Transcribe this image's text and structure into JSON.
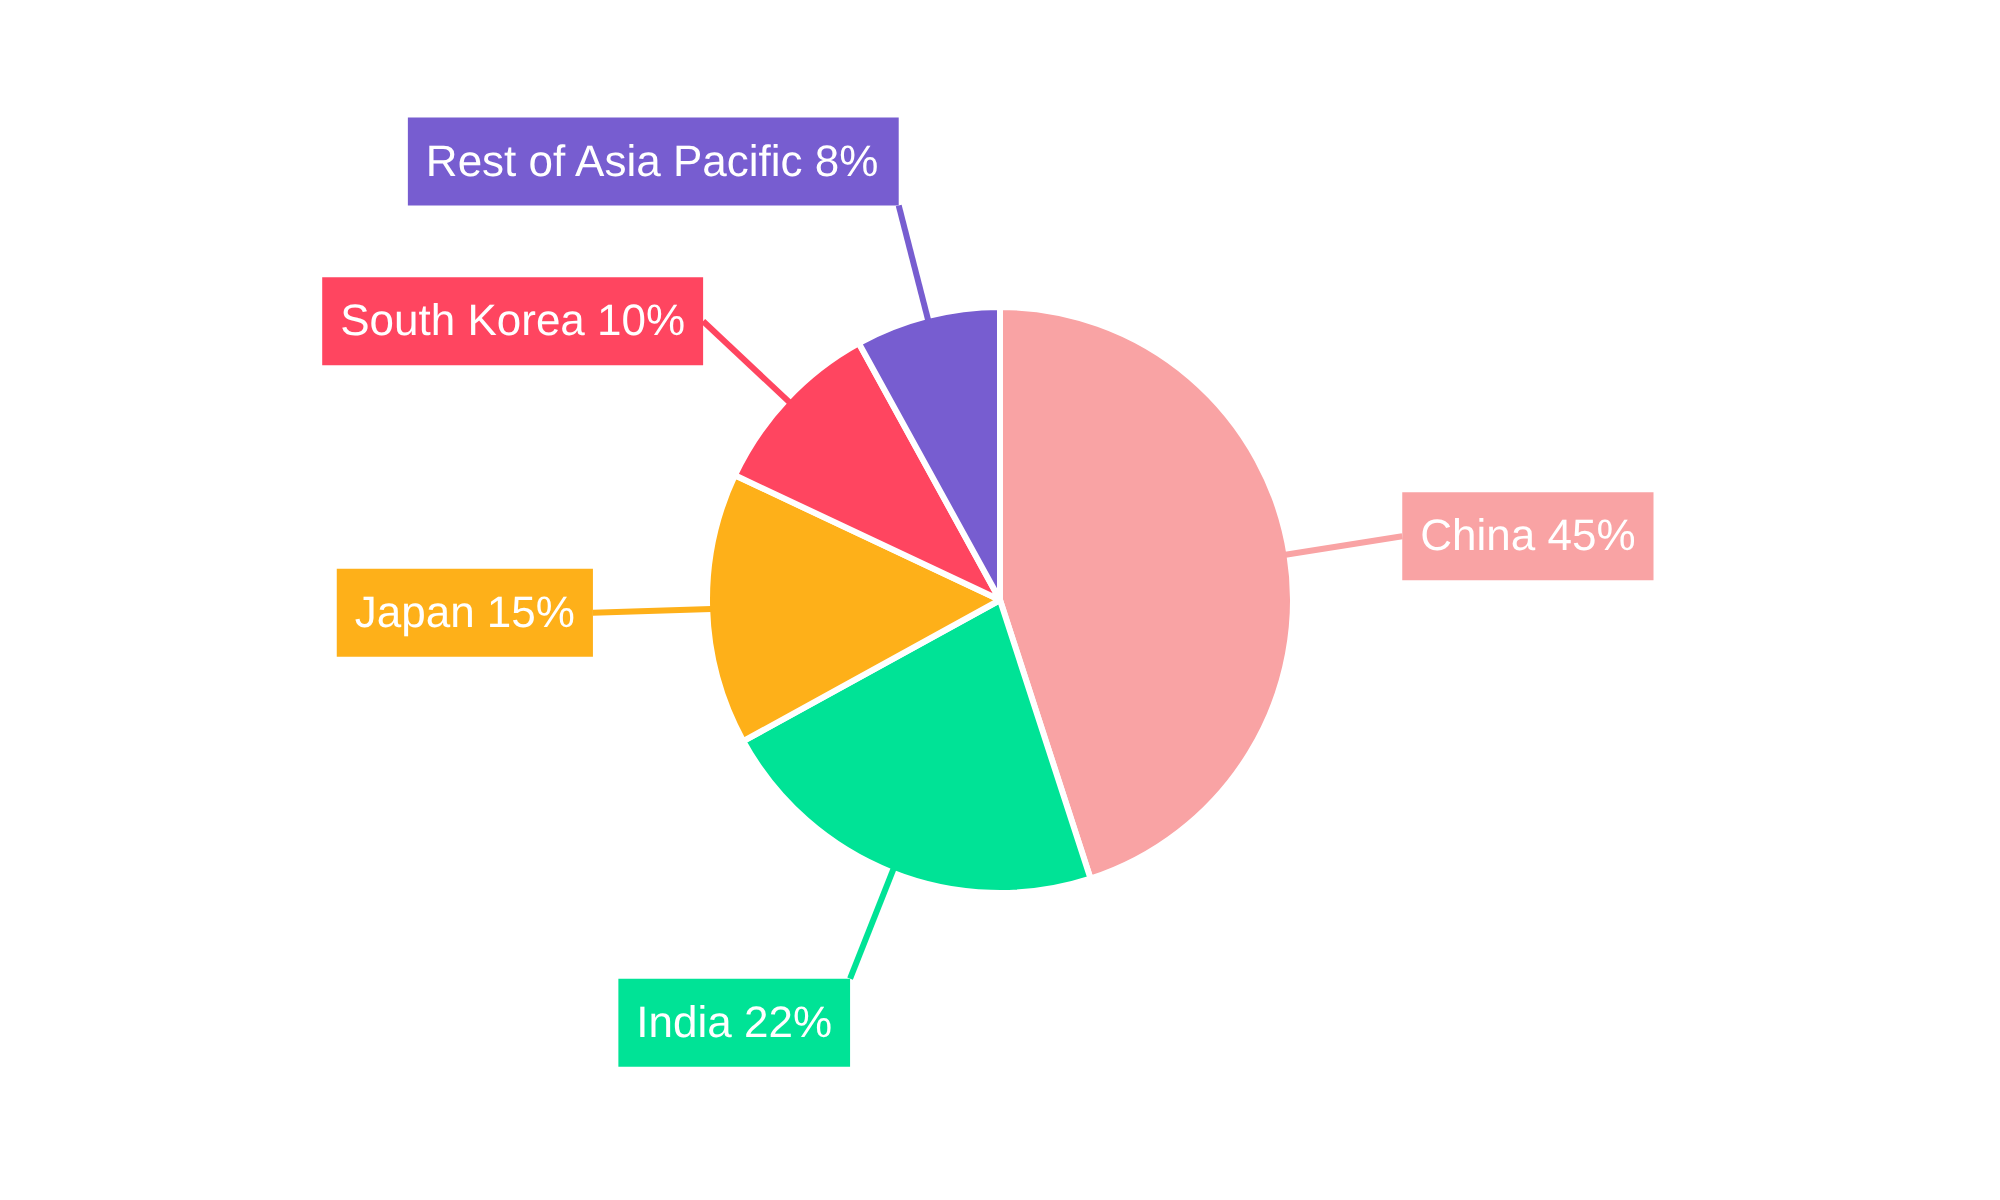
{
  "chart_data": {
    "type": "pie",
    "categories": [
      "China",
      "India",
      "Japan",
      "South Korea",
      "Rest of Asia Pacific"
    ],
    "values": [
      45,
      22,
      15,
      10,
      8
    ],
    "colors": [
      "#f9a3a4",
      "#00e396",
      "#feb019",
      "#ff4560",
      "#775dd0"
    ],
    "value_labels": [
      "45%",
      "22%",
      "15%",
      "10%",
      "8%"
    ]
  }
}
